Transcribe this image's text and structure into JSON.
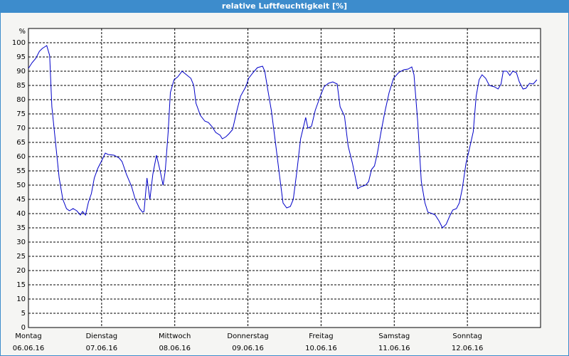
{
  "chart_data": {
    "type": "line",
    "title": "relative Luftfeuchtigkeit [%]",
    "y_label": "%",
    "xlim": [
      0,
      7
    ],
    "ylim": [
      0,
      105
    ],
    "xticks": [
      {
        "value": 0,
        "label": "Montag"
      },
      {
        "value": 1,
        "label": "Dienstag"
      },
      {
        "value": 2,
        "label": "Mittwoch"
      },
      {
        "value": 3,
        "label": "Donnerstag"
      },
      {
        "value": 4,
        "label": "Freitag"
      },
      {
        "value": 5,
        "label": "Samstag"
      },
      {
        "value": 6,
        "label": "Sonntag"
      }
    ],
    "xtick_dates": [
      "06.06.16",
      "07.06.16",
      "08.06.16",
      "09.06.16",
      "10.06.16",
      "11.06.16",
      "12.06.16"
    ],
    "yticks": [
      0,
      5,
      10,
      15,
      20,
      25,
      30,
      35,
      40,
      45,
      50,
      55,
      60,
      65,
      70,
      75,
      80,
      85,
      90,
      95,
      100
    ],
    "grid": true,
    "x": [
      0,
      0.05,
      0.1,
      0.15,
      0.19,
      0.25,
      0.29,
      0.32,
      0.37,
      0.42,
      0.47,
      0.52,
      0.56,
      0.61,
      0.66,
      0.71,
      0.74,
      0.78,
      0.82,
      0.86,
      0.9,
      0.95,
      1.0,
      1.05,
      1.09,
      1.17,
      1.24,
      1.28,
      1.34,
      1.41,
      1.46,
      1.52,
      1.56,
      1.58,
      1.62,
      1.66,
      1.7,
      1.75,
      1.8,
      1.84,
      1.87,
      1.91,
      1.94,
      1.99,
      2.04,
      2.1,
      2.16,
      2.22,
      2.26,
      2.29,
      2.35,
      2.41,
      2.46,
      2.51,
      2.56,
      2.62,
      2.65,
      2.7,
      2.74,
      2.79,
      2.85,
      2.9,
      2.97,
      3.01,
      3.07,
      3.13,
      3.2,
      3.23,
      3.27,
      3.32,
      3.37,
      3.43,
      3.48,
      3.53,
      3.58,
      3.62,
      3.67,
      3.72,
      3.79,
      3.82,
      3.87,
      3.92,
      3.99,
      4.04,
      4.1,
      4.16,
      4.22,
      4.26,
      4.32,
      4.37,
      4.43,
      4.5,
      4.55,
      4.61,
      4.65,
      4.69,
      4.73,
      4.77,
      4.82,
      4.87,
      4.93,
      4.99,
      5.06,
      5.13,
      5.19,
      5.24,
      5.27,
      5.32,
      5.37,
      5.42,
      5.46,
      5.52,
      5.56,
      5.61,
      5.66,
      5.71,
      5.76,
      5.8,
      5.85,
      5.89,
      5.93,
      5.98,
      6.03,
      6.08,
      6.12,
      6.16,
      6.2,
      6.25,
      6.3,
      6.37,
      6.42,
      6.46,
      6.49,
      6.54,
      6.58,
      6.62,
      6.67,
      6.71,
      6.76,
      6.8,
      6.85,
      6.9,
      6.95
    ],
    "series": [
      {
        "color": "#0000c8",
        "values": [
          91,
          93,
          94.5,
          97,
          98,
          99,
          95.5,
          77.5,
          65,
          52.5,
          45,
          41.75,
          41,
          41.75,
          41,
          39.5,
          40.75,
          39.5,
          44,
          47,
          52.5,
          56,
          58.5,
          61.25,
          60.75,
          60.5,
          59.5,
          58.25,
          53.75,
          49.5,
          45,
          41.75,
          40.5,
          40.75,
          52.5,
          45,
          53.75,
          60.5,
          55,
          50,
          55,
          68.75,
          82.5,
          87,
          88,
          90,
          88.75,
          87.5,
          85,
          78.75,
          74.5,
          72.5,
          72,
          70.5,
          68.5,
          67.5,
          66.25,
          67,
          68,
          69.5,
          76.25,
          81.25,
          84.5,
          87.5,
          89.5,
          91.25,
          91.75,
          90,
          83.75,
          76.25,
          66.25,
          53.75,
          43.75,
          42,
          42.5,
          45,
          55,
          66.25,
          73.75,
          70,
          70.75,
          76.25,
          81.25,
          84.5,
          85.75,
          86.25,
          85.5,
          77.5,
          74.25,
          63.75,
          57.5,
          48.75,
          49.5,
          50,
          51.25,
          55.5,
          56.75,
          61.25,
          68.75,
          75.5,
          82.5,
          87.5,
          89.5,
          90.5,
          90.75,
          91.5,
          88.75,
          72.5,
          51.25,
          43.75,
          40.5,
          40,
          39.5,
          37.5,
          35,
          36.25,
          39.25,
          41.25,
          41.75,
          43.75,
          48.75,
          57.5,
          63,
          68.75,
          81.25,
          87,
          88.75,
          87.5,
          85,
          84.5,
          83.75,
          85.5,
          90,
          90,
          88.5,
          90,
          89.5,
          86.25,
          83.75,
          84,
          85.75,
          85.5,
          87
        ]
      }
    ]
  }
}
